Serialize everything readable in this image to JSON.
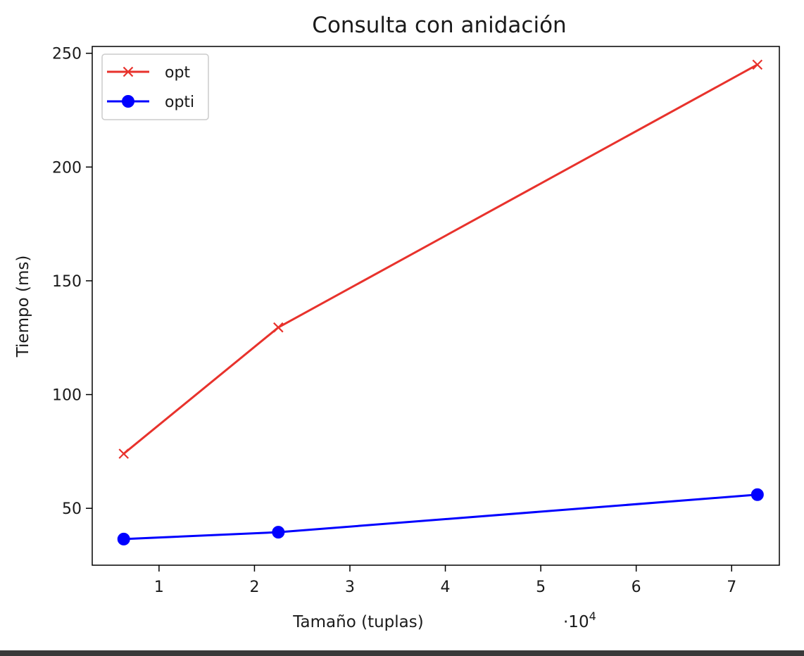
{
  "chart_data": {
    "type": "line",
    "title": "Consulta con anidación",
    "xlabel": "Tamaño (tuplas)",
    "ylabel": "Tiempo (ms)",
    "x_multiplier_text": "·10",
    "x_multiplier_exp": "4",
    "xlim": [
      0.3,
      7.5
    ],
    "ylim": [
      25,
      253
    ],
    "x_ticks": [
      1,
      2,
      3,
      4,
      5,
      6,
      7
    ],
    "y_ticks": [
      50,
      100,
      150,
      200,
      250
    ],
    "grid": false,
    "legend_position": "top-left",
    "series": [
      {
        "name": "opt",
        "color": "#e8322c",
        "marker": "x",
        "x": [
          0.63,
          2.25,
          7.27
        ],
        "y": [
          74,
          129.5,
          245
        ]
      },
      {
        "name": "opti",
        "color": "#0000ff",
        "marker": "o",
        "x": [
          0.63,
          2.25,
          7.27
        ],
        "y": [
          36.5,
          39.5,
          56
        ]
      }
    ]
  }
}
